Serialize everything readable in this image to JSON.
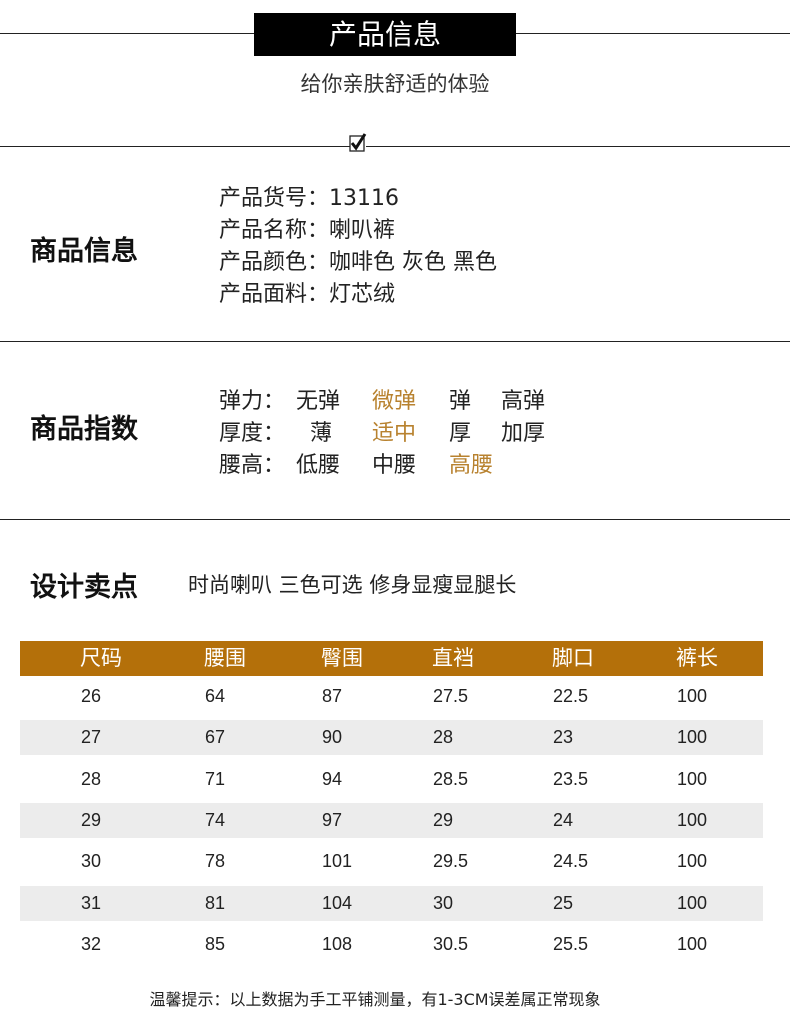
{
  "header": {
    "title": "产品信息",
    "subtitle": "给你亲肤舒适的体验"
  },
  "product_info": {
    "label": "商品信息",
    "fields": [
      "产品货号：13116",
      "产品名称：喇叭裤",
      "产品颜色：咖啡色 灰色 黑色",
      "产品面料：灯芯绒"
    ]
  },
  "index": {
    "label": "商品指数",
    "highlight_color": "#b8822f",
    "rows": [
      {
        "name": "弹力：",
        "options": [
          "无弹",
          "微弹",
          "弹",
          "高弹"
        ],
        "selected": 1
      },
      {
        "name": "厚度：",
        "options": [
          "薄",
          "适中",
          "厚",
          "加厚"
        ],
        "selected": 1
      },
      {
        "name": "腰高：",
        "options": [
          "低腰",
          "中腰",
          "高腰"
        ],
        "selected": 2
      }
    ]
  },
  "design": {
    "label": "设计卖点",
    "text": "时尚喇叭 三色可选 修身显瘦显腿长"
  },
  "size_table": {
    "header_color": "#b4700a",
    "headers": [
      "尺码",
      "腰围",
      "臀围",
      "直裆",
      "脚口",
      "裤长"
    ],
    "rows": [
      [
        "26",
        "64",
        "87",
        "27.5",
        "22.5",
        "100"
      ],
      [
        "27",
        "67",
        "90",
        "28",
        "23",
        "100"
      ],
      [
        "28",
        "71",
        "94",
        "28.5",
        "23.5",
        "100"
      ],
      [
        "29",
        "74",
        "97",
        "29",
        "24",
        "100"
      ],
      [
        "30",
        "78",
        "101",
        "29.5",
        "24.5",
        "100"
      ],
      [
        "31",
        "81",
        "104",
        "30",
        "25",
        "100"
      ],
      [
        "32",
        "85",
        "108",
        "30.5",
        "25.5",
        "100"
      ]
    ]
  },
  "footer_note": "温馨提示：以上数据为手工平铺测量，有1-3CM误差属正常现象"
}
